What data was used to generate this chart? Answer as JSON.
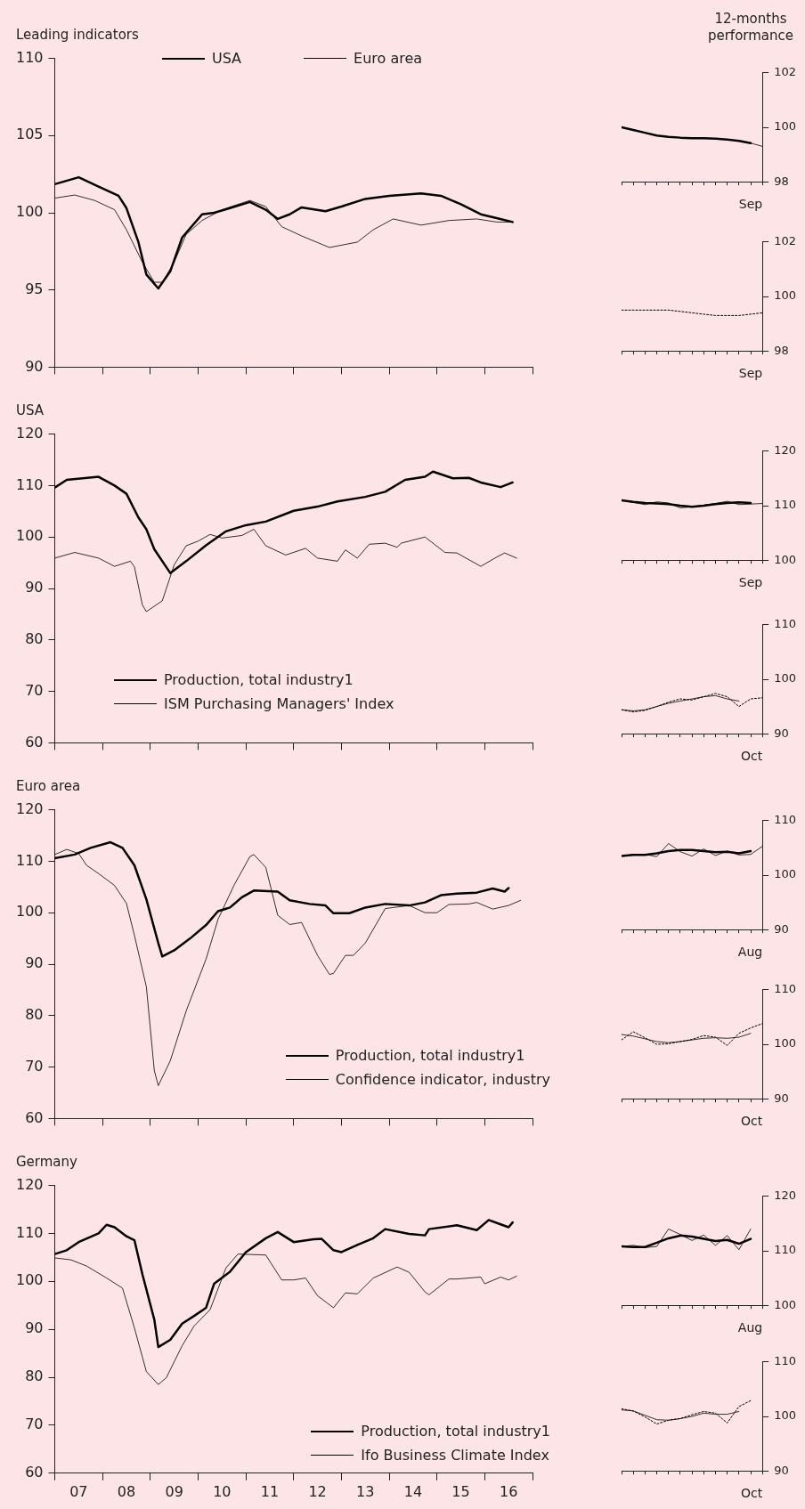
{
  "chart_data": [
    {
      "type": "line",
      "title": "Leading indicators",
      "legend": "top",
      "tick_labels": "y",
      "xlim": [
        "2007-01",
        "2017-01"
      ],
      "ylim": [
        90,
        110
      ],
      "yticks": [
        90,
        95,
        100,
        105,
        110
      ],
      "series": [
        {
          "name": "USA",
          "color": "#000000",
          "x": [
            "2007-01",
            "2007-07",
            "2007-12",
            "2008-05",
            "2008-07",
            "2008-10",
            "2008-12",
            "2009-03",
            "2009-06",
            "2009-09",
            "2010-02",
            "2010-05",
            "2010-09",
            "2011-02",
            "2011-06",
            "2011-09",
            "2011-12",
            "2012-03",
            "2012-09",
            "2013-01",
            "2013-07",
            "2014-01",
            "2014-09",
            "2015-02",
            "2015-07",
            "2015-12",
            "2016-04",
            "2016-08"
          ],
          "values": [
            101.85,
            102.3,
            101.7,
            101.1,
            100.3,
            98.1,
            96.0,
            95.1,
            96.2,
            98.4,
            99.9,
            100.0,
            100.3,
            100.7,
            100.2,
            99.6,
            99.9,
            100.35,
            100.1,
            100.4,
            100.9,
            101.1,
            101.25,
            101.1,
            100.55,
            99.9,
            99.65,
            99.4
          ]
        },
        {
          "name": "Euro area",
          "color": "#000000",
          "x": [
            "2007-01",
            "2007-06",
            "2007-11",
            "2008-04",
            "2008-07",
            "2008-11",
            "2009-02",
            "2009-04",
            "2009-07",
            "2009-10",
            "2010-02",
            "2010-07",
            "2011-02",
            "2011-06",
            "2011-10",
            "2012-03",
            "2012-10",
            "2013-05",
            "2013-09",
            "2014-02",
            "2014-09",
            "2015-04",
            "2015-11",
            "2016-04",
            "2016-08"
          ],
          "values": [
            100.95,
            101.15,
            100.8,
            100.2,
            98.9,
            96.8,
            95.5,
            95.5,
            96.8,
            98.6,
            99.5,
            100.2,
            100.8,
            100.4,
            99.1,
            98.5,
            97.75,
            98.1,
            98.9,
            99.6,
            99.2,
            99.5,
            99.6,
            99.4,
            99.4
          ]
        }
      ]
    },
    {
      "type": "line",
      "title": "12-months performance",
      "xlabel": "Sep",
      "tick_labels": "y",
      "categories": [
        null,
        null,
        null,
        null,
        null,
        null,
        null,
        null,
        null,
        null,
        null,
        null,
        null
      ],
      "ylim": [
        98,
        102
      ],
      "yticks": [
        98,
        100,
        102
      ],
      "series": [
        {
          "color": "#000000",
          "values": [
            100.0,
            99.9,
            99.8,
            99.7,
            99.65,
            99.62,
            99.6,
            99.6,
            99.58,
            99.55,
            99.5,
            99.42,
            null
          ]
        },
        {
          "color": "#000000",
          "values": [
            null,
            null,
            null,
            null,
            null,
            null,
            null,
            null,
            null,
            null,
            null,
            99.42,
            99.3
          ]
        }
      ]
    },
    {
      "type": "line",
      "xlabel": "Sep",
      "tick_labels": "y",
      "categories": [
        null,
        null,
        null,
        null,
        null,
        null,
        null,
        null,
        null,
        null,
        null,
        null,
        null
      ],
      "ylim": [
        98,
        102
      ],
      "yticks": [
        98,
        100,
        102
      ],
      "series": [
        {
          "color": "#000000",
          "line_style": "dotted",
          "values": [
            99.5,
            99.5,
            99.5,
            99.5,
            99.5,
            99.45,
            99.4,
            99.35,
            99.3,
            99.3,
            99.3,
            99.35,
            99.4
          ]
        }
      ]
    },
    {
      "type": "line",
      "title": "USA",
      "legend": "bottom left",
      "tick_labels": "y",
      "xlim": [
        "2007-01",
        "2017-01"
      ],
      "ylim": [
        60,
        120
      ],
      "yticks": [
        60,
        70,
        80,
        90,
        100,
        110,
        120
      ],
      "series": [
        {
          "name": "Production, total industry1",
          "color": "#000000",
          "x": [
            "2007-01",
            "2007-04",
            "2007-12",
            "2008-04",
            "2008-07",
            "2008-10",
            "2008-12",
            "2009-02",
            "2009-06",
            "2009-10",
            "2010-03",
            "2010-08",
            "2011-01",
            "2011-06",
            "2012-01",
            "2012-07",
            "2012-12",
            "2013-07",
            "2013-12",
            "2014-05",
            "2014-10",
            "2014-12",
            "2015-05",
            "2015-09",
            "2015-12",
            "2016-05",
            "2016-08"
          ],
          "values": [
            109.6,
            111.1,
            111.7,
            110.0,
            108.4,
            103.8,
            101.5,
            97.6,
            93.0,
            95.3,
            98.4,
            101.1,
            102.3,
            103.0,
            105.1,
            105.9,
            106.9,
            107.8,
            108.8,
            111.1,
            111.7,
            112.7,
            111.4,
            111.5,
            110.6,
            109.7,
            110.6
          ]
        },
        {
          "name": "ISM Purchasing Managers' Index",
          "color": "#000000",
          "x": [
            "2007-01",
            "2007-06",
            "2007-12",
            "2008-04",
            "2008-08",
            "2008-09",
            "2008-11",
            "2008-12",
            "2009-04",
            "2009-07",
            "2009-10",
            "2010-01",
            "2010-04",
            "2010-07",
            "2010-12",
            "2011-03",
            "2011-06",
            "2011-11",
            "2012-04",
            "2012-07",
            "2012-12",
            "2013-02",
            "2013-05",
            "2013-08",
            "2013-12",
            "2014-03",
            "2014-04",
            "2014-10",
            "2015-03",
            "2015-06",
            "2015-12",
            "2016-04",
            "2016-06",
            "2016-09"
          ],
          "values": [
            95.9,
            97.0,
            95.9,
            94.3,
            95.3,
            94.2,
            86.8,
            85.5,
            87.6,
            94.6,
            98.3,
            99.2,
            100.5,
            99.8,
            100.3,
            101.5,
            98.3,
            96.5,
            97.8,
            95.9,
            95.3,
            97.5,
            95.9,
            98.6,
            98.8,
            98.0,
            98.8,
            100.0,
            97.0,
            96.9,
            94.3,
            96.1,
            96.9,
            95.9
          ]
        }
      ]
    },
    {
      "type": "line",
      "xlabel": "Sep",
      "tick_labels": "y",
      "categories": [
        null,
        null,
        null,
        null,
        null,
        null,
        null,
        null,
        null,
        null,
        null,
        null,
        null
      ],
      "ylim": [
        100,
        120
      ],
      "yticks": [
        100,
        110,
        120
      ],
      "series": [
        {
          "color": "#000000",
          "values": [
            111.0,
            110.7,
            110.5,
            110.4,
            110.3,
            110.0,
            109.8,
            110.0,
            110.3,
            110.5,
            110.6,
            110.5,
            null
          ]
        },
        {
          "color": "#000000",
          "values": [
            111.0,
            110.6,
            110.2,
            110.7,
            110.5,
            109.6,
            109.8,
            110.1,
            110.4,
            110.8,
            110.2,
            110.3,
            110.4
          ]
        }
      ]
    },
    {
      "type": "line",
      "xlabel": "Oct",
      "tick_labels": "y",
      "categories": [
        null,
        null,
        null,
        null,
        null,
        null,
        null,
        null,
        null,
        null,
        null,
        null,
        null
      ],
      "ylim": [
        90,
        110
      ],
      "yticks": [
        90,
        100,
        110
      ],
      "series": [
        {
          "color": "#000000",
          "line_style": "dotted",
          "values": [
            94.4,
            94.0,
            94.3,
            95.0,
            95.8,
            96.4,
            96.2,
            96.8,
            97.4,
            96.8,
            95.0,
            96.4,
            96.6
          ]
        },
        {
          "color": "#000000",
          "values": [
            94.4,
            94.2,
            94.4,
            95.0,
            95.6,
            96.0,
            96.4,
            96.8,
            97.0,
            96.4,
            96.0,
            null,
            null
          ]
        }
      ]
    },
    {
      "type": "line",
      "title": "Euro area",
      "legend": "bottom right",
      "tick_labels": "y",
      "xlim": [
        "2007-01",
        "2017-01"
      ],
      "ylim": [
        60,
        120
      ],
      "yticks": [
        60,
        70,
        80,
        90,
        100,
        110,
        120
      ],
      "series": [
        {
          "name": "Production, total industry1",
          "color": "#000000",
          "x": [
            "2007-01",
            "2007-06",
            "2007-10",
            "2008-03",
            "2008-06",
            "2008-09",
            "2008-12",
            "2009-03",
            "2009-04",
            "2009-07",
            "2009-11",
            "2010-03",
            "2010-06",
            "2010-09",
            "2010-12",
            "2011-03",
            "2011-09",
            "2011-12",
            "2012-05",
            "2012-09",
            "2012-11",
            "2013-03",
            "2013-07",
            "2013-12",
            "2014-06",
            "2014-10",
            "2015-02",
            "2015-06",
            "2015-11",
            "2016-03",
            "2016-06",
            "2016-07"
          ],
          "values": [
            110.6,
            111.3,
            112.6,
            113.7,
            112.6,
            109.2,
            102.6,
            94.1,
            91.5,
            92.7,
            95.0,
            97.6,
            100.3,
            101.0,
            103.0,
            104.3,
            104.1,
            102.4,
            101.7,
            101.4,
            99.9,
            99.9,
            101.0,
            101.7,
            101.4,
            102.0,
            103.4,
            103.7,
            103.9,
            104.7,
            104.1,
            104.8
          ]
        },
        {
          "name": "Confidence indicator, industry",
          "color": "#000000",
          "x": [
            "2007-01",
            "2007-04",
            "2007-07",
            "2007-09",
            "2007-12",
            "2008-04",
            "2008-07",
            "2008-09",
            "2008-12",
            "2009-02",
            "2009-03",
            "2009-06",
            "2009-10",
            "2010-03",
            "2010-06",
            "2010-10",
            "2011-02",
            "2011-03",
            "2011-06",
            "2011-09",
            "2011-12",
            "2012-03",
            "2012-07",
            "2012-10",
            "2012-11",
            "2013-02",
            "2013-04",
            "2013-07",
            "2013-12",
            "2014-06",
            "2014-10",
            "2015-01",
            "2015-04",
            "2015-09",
            "2015-11",
            "2016-03",
            "2016-07",
            "2016-10"
          ],
          "values": [
            111.3,
            112.3,
            111.5,
            109.2,
            107.6,
            105.3,
            101.8,
            95.6,
            85.6,
            69.3,
            66.4,
            71.2,
            80.9,
            91.0,
            98.7,
            105.3,
            110.9,
            111.3,
            108.8,
            99.5,
            97.7,
            98.1,
            91.7,
            88.0,
            88.2,
            91.7,
            91.7,
            94.1,
            100.8,
            101.4,
            100.0,
            100.0,
            101.6,
            101.7,
            102.0,
            100.7,
            101.4,
            102.4
          ]
        }
      ]
    },
    {
      "type": "line",
      "xlabel": "Aug",
      "tick_labels": "y",
      "categories": [
        null,
        null,
        null,
        null,
        null,
        null,
        null,
        null,
        null,
        null,
        null,
        null,
        null
      ],
      "ylim": [
        90,
        110
      ],
      "yticks": [
        90,
        100,
        110
      ],
      "series": [
        {
          "color": "#000000",
          "values": [
            103.5,
            103.7,
            103.7,
            104.0,
            104.4,
            104.6,
            104.6,
            104.4,
            104.2,
            104.3,
            104.0,
            104.4,
            null
          ]
        },
        {
          "color": "#000000",
          "values": [
            103.5,
            103.8,
            103.8,
            103.4,
            105.8,
            104.3,
            103.5,
            104.8,
            103.6,
            104.4,
            103.7,
            103.8,
            105.3
          ]
        }
      ]
    },
    {
      "type": "line",
      "xlabel": "Oct",
      "tick_labels": "y",
      "categories": [
        null,
        null,
        null,
        null,
        null,
        null,
        null,
        null,
        null,
        null,
        null,
        null,
        null
      ],
      "ylim": [
        90,
        110
      ],
      "yticks": [
        90,
        100,
        110
      ],
      "series": [
        {
          "color": "#000000",
          "line_style": "dotted",
          "values": [
            100.8,
            102.3,
            101.2,
            100.0,
            100.1,
            100.5,
            100.9,
            101.6,
            101.3,
            99.8,
            102.0,
            103.0,
            103.8
          ]
        },
        {
          "color": "#000000",
          "values": [
            101.8,
            101.5,
            101.0,
            100.5,
            100.3,
            100.5,
            100.8,
            101.1,
            101.2,
            101.1,
            101.3,
            102.0,
            null
          ]
        }
      ]
    },
    {
      "type": "line",
      "title": "Germany",
      "legend": "bottom right",
      "xlim": [
        "2007-01",
        "2017-01"
      ],
      "xticks": [
        {
          "value": "2007-01",
          "label": null
        },
        {
          "value": "2007-07",
          "label": "07"
        },
        {
          "value": "2008-01",
          "label": null
        },
        {
          "value": "2008-07",
          "label": "08"
        },
        {
          "value": "2009-01",
          "label": null
        },
        {
          "value": "2009-07",
          "label": "09"
        },
        {
          "value": "2010-01",
          "label": null
        },
        {
          "value": "2010-07",
          "label": "10"
        },
        {
          "value": "2011-01",
          "label": null
        },
        {
          "value": "2011-07",
          "label": "11"
        },
        {
          "value": "2012-01",
          "label": null
        },
        {
          "value": "2012-07",
          "label": "12"
        },
        {
          "value": "2013-01",
          "label": null
        },
        {
          "value": "2013-07",
          "label": "13"
        },
        {
          "value": "2014-01",
          "label": null
        },
        {
          "value": "2014-07",
          "label": "14"
        },
        {
          "value": "2015-01",
          "label": null
        },
        {
          "value": "2015-07",
          "label": "15"
        },
        {
          "value": "2016-01",
          "label": null
        },
        {
          "value": "2016-07",
          "label": "16"
        },
        {
          "value": "2017-01",
          "label": null
        }
      ],
      "ylim": [
        60,
        120
      ],
      "yticks": [
        60,
        70,
        80,
        90,
        100,
        110,
        120
      ],
      "series": [
        {
          "name": "Production, total industry1",
          "color": "#000000",
          "x": [
            "2007-01",
            "2007-04",
            "2007-07",
            "2007-12",
            "2008-02",
            "2008-04",
            "2008-07",
            "2008-09",
            "2008-11",
            "2009-02",
            "2009-03",
            "2009-06",
            "2009-09",
            "2009-12",
            "2010-03",
            "2010-05",
            "2010-09",
            "2011-01",
            "2011-06",
            "2011-09",
            "2012-01",
            "2012-06",
            "2012-08",
            "2012-11",
            "2013-01",
            "2013-05",
            "2013-09",
            "2013-12",
            "2014-06",
            "2014-10",
            "2014-11",
            "2015-06",
            "2015-11",
            "2016-02",
            "2016-05",
            "2016-07",
            "2016-08"
          ],
          "values": [
            105.7,
            106.5,
            108.2,
            110.0,
            111.8,
            111.3,
            109.4,
            108.6,
            101.5,
            92.0,
            86.3,
            87.8,
            91.2,
            92.8,
            94.5,
            99.5,
            102.0,
            106.1,
            109.0,
            110.3,
            108.2,
            108.8,
            108.9,
            106.5,
            106.1,
            107.6,
            109.0,
            110.9,
            109.9,
            109.6,
            110.9,
            111.7,
            110.7,
            112.8,
            111.9,
            111.3,
            112.3
          ]
        },
        {
          "name": "Ifo Business Climate Index",
          "color": "#000000",
          "x": [
            "2007-01",
            "2007-05",
            "2007-09",
            "2008-02",
            "2008-06",
            "2008-09",
            "2008-12",
            "2009-03",
            "2009-05",
            "2009-09",
            "2009-12",
            "2010-04",
            "2010-08",
            "2010-11",
            "2011-06",
            "2011-10",
            "2012-01",
            "2012-04",
            "2012-07",
            "2012-11",
            "2013-02",
            "2013-05",
            "2013-09",
            "2014-03",
            "2014-06",
            "2014-10",
            "2014-11",
            "2015-04",
            "2015-06",
            "2015-12",
            "2016-01",
            "2016-05",
            "2016-07",
            "2016-09"
          ],
          "values": [
            104.9,
            104.5,
            103.2,
            100.7,
            98.6,
            90.3,
            81.2,
            78.5,
            79.9,
            86.6,
            90.7,
            94.1,
            102.8,
            105.7,
            105.5,
            100.3,
            100.3,
            100.7,
            97.0,
            94.5,
            97.6,
            97.4,
            100.7,
            103.0,
            101.9,
            97.8,
            97.2,
            100.5,
            100.5,
            100.9,
            99.5,
            100.9,
            100.3,
            101.1
          ]
        }
      ]
    },
    {
      "type": "line",
      "xlabel": "Aug",
      "tick_labels": "y",
      "categories": [
        null,
        null,
        null,
        null,
        null,
        null,
        null,
        null,
        null,
        null,
        null,
        null,
        null
      ],
      "ylim": [
        100,
        120
      ],
      "yticks": [
        100,
        110,
        120
      ],
      "series": [
        {
          "color": "#000000",
          "values": [
            110.8,
            110.7,
            110.7,
            111.5,
            112.3,
            112.8,
            112.6,
            112.2,
            111.8,
            112.0,
            111.3,
            112.2,
            null
          ]
        },
        {
          "color": "#000000",
          "values": [
            110.8,
            111.0,
            110.6,
            110.8,
            114.0,
            113.0,
            111.9,
            112.9,
            111.0,
            112.8,
            110.2,
            114.0,
            null
          ]
        }
      ]
    },
    {
      "type": "line",
      "xlabel": "Oct",
      "tick_labels": "y",
      "categories": [
        null,
        null,
        null,
        null,
        null,
        null,
        null,
        null,
        null,
        null,
        null,
        null,
        null
      ],
      "ylim": [
        90,
        110
      ],
      "yticks": [
        90,
        100,
        110
      ],
      "series": [
        {
          "color": "#000000",
          "line_style": "dotted",
          "values": [
            101.4,
            101.0,
            99.9,
            98.6,
            99.3,
            99.6,
            100.3,
            100.9,
            100.6,
            98.8,
            101.8,
            102.9,
            null
          ]
        },
        {
          "color": "#000000",
          "values": [
            101.2,
            101.0,
            100.2,
            99.4,
            99.3,
            99.6,
            100.0,
            100.6,
            100.4,
            100.4,
            100.9,
            null,
            null
          ]
        }
      ]
    }
  ]
}
